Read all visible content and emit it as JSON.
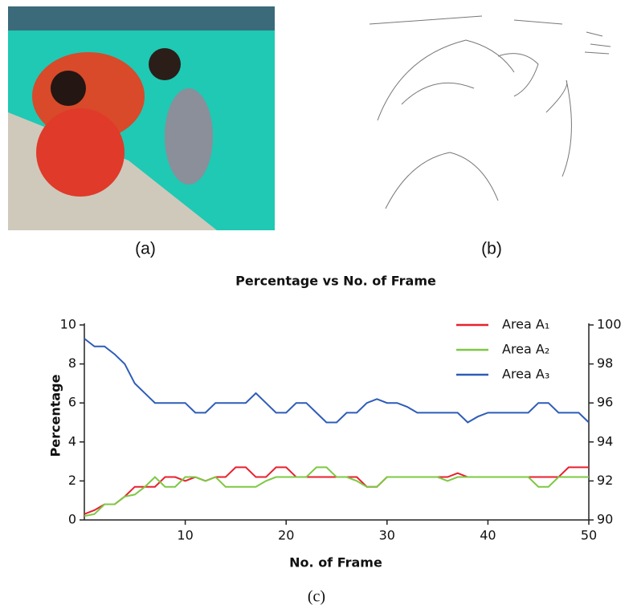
{
  "panels": [
    {
      "label": "(a)"
    },
    {
      "label": "(b)"
    }
  ],
  "caption": "(c)",
  "chart_data": {
    "type": "line",
    "title": "Percentage vs No. of Frame",
    "x_label": "No. of Frame",
    "y_label": "Percentage",
    "x": [
      0,
      1,
      2,
      3,
      4,
      5,
      6,
      7,
      8,
      9,
      10,
      11,
      12,
      13,
      14,
      15,
      16,
      17,
      18,
      19,
      20,
      21,
      22,
      23,
      24,
      25,
      26,
      27,
      28,
      29,
      30,
      31,
      32,
      33,
      34,
      35,
      36,
      37,
      38,
      39,
      40,
      41,
      42,
      43,
      44,
      45,
      46,
      47,
      48,
      49,
      50
    ],
    "xlim": [
      0,
      50
    ],
    "xticks": [
      10,
      20,
      30,
      40,
      50
    ],
    "ylim": [
      0,
      10
    ],
    "yticks": [
      0,
      2,
      4,
      6,
      8,
      10
    ],
    "y2lim": [
      90,
      100
    ],
    "y2ticks": [
      90,
      92,
      94,
      96,
      98,
      100
    ],
    "grid": false,
    "legend": "upper right",
    "series": [
      {
        "name": "Area A₁",
        "color": "#e8202e",
        "values": [
          0.3,
          0.5,
          0.8,
          0.8,
          1.2,
          1.7,
          1.7,
          1.7,
          2.2,
          2.2,
          2,
          2.2,
          2,
          2.2,
          2.2,
          2.7,
          2.7,
          2.2,
          2.2,
          2.7,
          2.7,
          2.2,
          2.2,
          2.2,
          2.2,
          2.2,
          2.2,
          2.2,
          1.7,
          1.7,
          2.2,
          2.2,
          2.2,
          2.2,
          2.2,
          2.2,
          2.2,
          2.4,
          2.2,
          2.2,
          2.2,
          2.2,
          2.2,
          2.2,
          2.2,
          2.2,
          2.2,
          2.2,
          2.7,
          2.7,
          2.7
        ]
      },
      {
        "name": "Area A₂",
        "color": "#7dc843",
        "values": [
          0.2,
          0.3,
          0.8,
          0.8,
          1.2,
          1.3,
          1.7,
          2.2,
          1.7,
          1.7,
          2.2,
          2.2,
          2,
          2.2,
          1.7,
          1.7,
          1.7,
          1.7,
          2,
          2.2,
          2.2,
          2.2,
          2.2,
          2.7,
          2.7,
          2.2,
          2.2,
          2,
          1.7,
          1.7,
          2.2,
          2.2,
          2.2,
          2.2,
          2.2,
          2.2,
          2,
          2.2,
          2.2,
          2.2,
          2.2,
          2.2,
          2.2,
          2.2,
          2.2,
          1.7,
          1.7,
          2.2,
          2.2,
          2.2,
          2.2
        ]
      },
      {
        "name": "Area A₃",
        "color": "#2e5cb8",
        "axis": "y2",
        "values": [
          99.3,
          98.9,
          98.9,
          98.5,
          98,
          97,
          96.5,
          96,
          96,
          96,
          96,
          95.5,
          95.5,
          96,
          96,
          96,
          96,
          96.5,
          96,
          95.5,
          95.5,
          96,
          96,
          95.5,
          95,
          95,
          95.5,
          95.5,
          96,
          96.2,
          96,
          96,
          95.8,
          95.5,
          95.5,
          95.5,
          95.5,
          95.5,
          95,
          95.3,
          95.5,
          95.5,
          95.5,
          95.5,
          95.5,
          96,
          96,
          95.5,
          95.5,
          95.5,
          95
        ]
      }
    ]
  }
}
